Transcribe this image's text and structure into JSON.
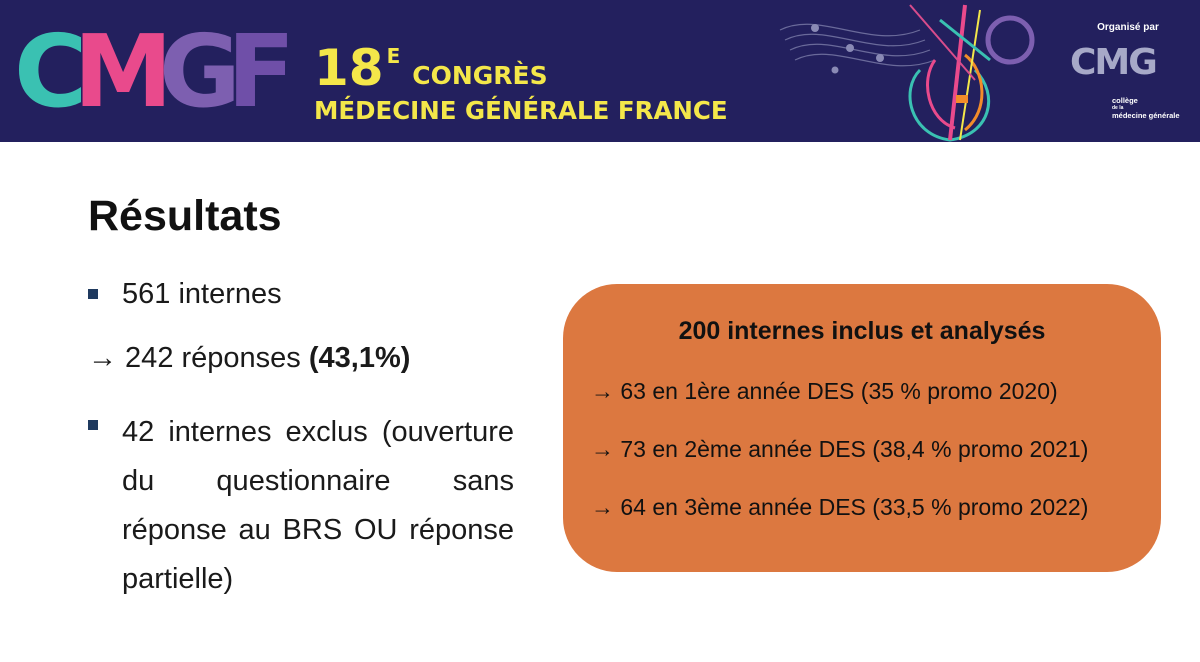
{
  "banner": {
    "logo": {
      "text": "CMGF",
      "letters": [
        {
          "char": "C",
          "color": "#3ac1b2"
        },
        {
          "char": "M",
          "color": "#e94a8c"
        },
        {
          "char": "G",
          "color": "#7d5fb0"
        },
        {
          "char": "F",
          "color": "#6f4fa8"
        }
      ]
    },
    "number": "18",
    "superscript": "E",
    "congress_label": "CONGRÈS",
    "subtitle": "MÉDECINE GÉNÉRALE FRANCE",
    "organizer_label": "Organisé par",
    "organizer_logo": "CMG",
    "organizer_sub1": "collège",
    "organizer_sub2": "de la",
    "organizer_sub3": "médecine générale",
    "colors": {
      "background": "#23205e",
      "title": "#f4e74a"
    }
  },
  "content": {
    "heading": "Résultats",
    "item1": "561 internes",
    "item2_prefix": "→ 242 réponses ",
    "item2_bold": "(43,1%)",
    "item3": "42 internes exclus (ouverture du questionnaire sans réponse au BRS OU réponse partielle)"
  },
  "box": {
    "title": "200 internes inclus et analysés",
    "lines": [
      "→ 63 en 1ère année DES (35 % promo 2020)",
      "→ 73 en 2ème année DES (38,4 % promo 2021)",
      "→ 64 en 3ème année DES (33,5 % promo 2022)"
    ],
    "color": "#dc7840"
  }
}
